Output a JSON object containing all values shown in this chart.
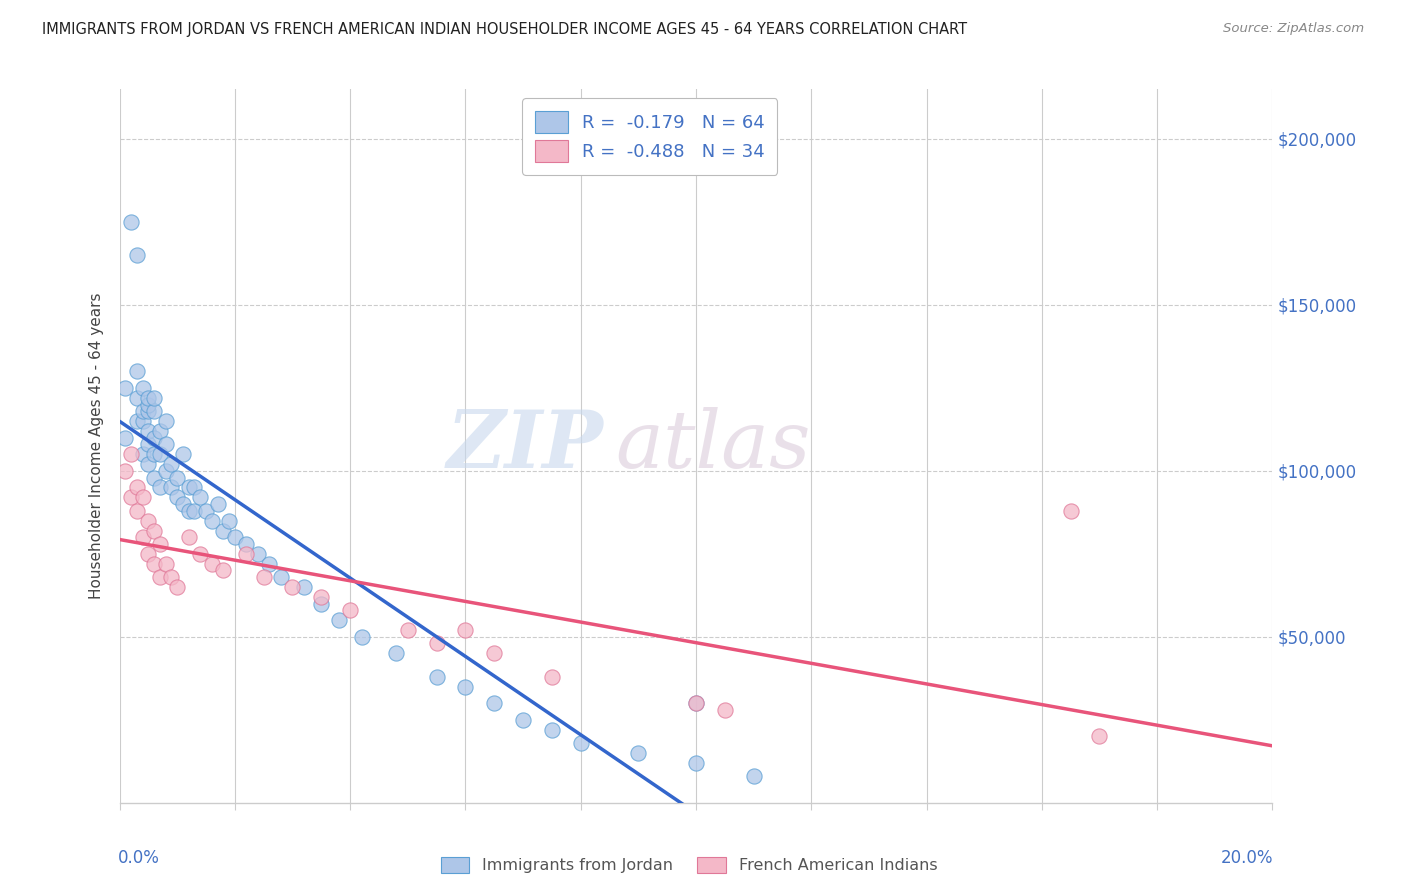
{
  "title": "IMMIGRANTS FROM JORDAN VS FRENCH AMERICAN INDIAN HOUSEHOLDER INCOME AGES 45 - 64 YEARS CORRELATION CHART",
  "source": "Source: ZipAtlas.com",
  "ylabel": "Householder Income Ages 45 - 64 years",
  "y_tick_labels": [
    "$50,000",
    "$100,000",
    "$150,000",
    "$200,000"
  ],
  "y_tick_values": [
    50000,
    100000,
    150000,
    200000
  ],
  "ylim": [
    0,
    215000
  ],
  "xlim": [
    0.0,
    0.2
  ],
  "legend1_text": "R =  -0.179   N = 64",
  "legend2_text": "R =  -0.488   N = 34",
  "legend1_color": "#aec6e8",
  "legend2_color": "#f4b8c8",
  "line1_color": "#4472c4",
  "line2_color": "#e8547a",
  "watermark_zip": "ZIP",
  "watermark_atlas": "atlas",
  "jordan_x": [
    0.001,
    0.001,
    0.002,
    0.003,
    0.003,
    0.003,
    0.003,
    0.004,
    0.004,
    0.004,
    0.004,
    0.005,
    0.005,
    0.005,
    0.005,
    0.005,
    0.005,
    0.006,
    0.006,
    0.006,
    0.006,
    0.006,
    0.007,
    0.007,
    0.007,
    0.008,
    0.008,
    0.008,
    0.009,
    0.009,
    0.01,
    0.01,
    0.011,
    0.011,
    0.012,
    0.012,
    0.013,
    0.013,
    0.014,
    0.015,
    0.016,
    0.017,
    0.018,
    0.019,
    0.02,
    0.022,
    0.024,
    0.026,
    0.028,
    0.032,
    0.035,
    0.038,
    0.042,
    0.048,
    0.055,
    0.06,
    0.065,
    0.07,
    0.075,
    0.08,
    0.09,
    0.1,
    0.1,
    0.11
  ],
  "jordan_y": [
    110000,
    125000,
    175000,
    115000,
    122000,
    130000,
    165000,
    105000,
    115000,
    118000,
    125000,
    102000,
    108000,
    112000,
    118000,
    120000,
    122000,
    98000,
    105000,
    110000,
    118000,
    122000,
    95000,
    105000,
    112000,
    100000,
    108000,
    115000,
    95000,
    102000,
    92000,
    98000,
    90000,
    105000,
    88000,
    95000,
    88000,
    95000,
    92000,
    88000,
    85000,
    90000,
    82000,
    85000,
    80000,
    78000,
    75000,
    72000,
    68000,
    65000,
    60000,
    55000,
    50000,
    45000,
    38000,
    35000,
    30000,
    25000,
    22000,
    18000,
    15000,
    12000,
    30000,
    8000
  ],
  "french_x": [
    0.001,
    0.002,
    0.002,
    0.003,
    0.003,
    0.004,
    0.004,
    0.005,
    0.005,
    0.006,
    0.006,
    0.007,
    0.007,
    0.008,
    0.009,
    0.01,
    0.012,
    0.014,
    0.016,
    0.018,
    0.022,
    0.025,
    0.03,
    0.035,
    0.04,
    0.05,
    0.055,
    0.06,
    0.065,
    0.075,
    0.1,
    0.105,
    0.165,
    0.17
  ],
  "french_y": [
    100000,
    92000,
    105000,
    88000,
    95000,
    80000,
    92000,
    75000,
    85000,
    72000,
    82000,
    68000,
    78000,
    72000,
    68000,
    65000,
    80000,
    75000,
    72000,
    70000,
    75000,
    68000,
    65000,
    62000,
    58000,
    52000,
    48000,
    52000,
    45000,
    38000,
    30000,
    28000,
    88000,
    20000
  ]
}
